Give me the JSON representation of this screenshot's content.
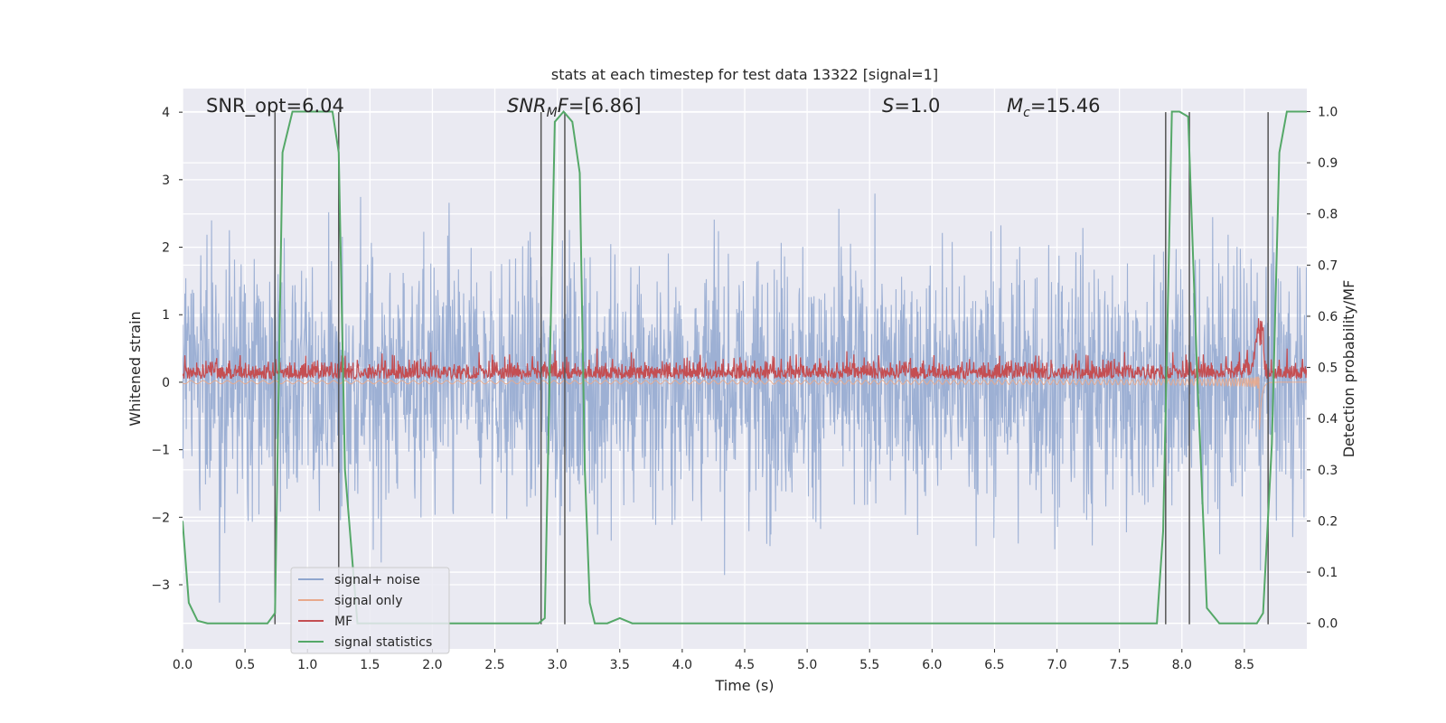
{
  "chart_data": {
    "type": "line",
    "title": "stats at each timestep for test data 13322 [signal=1]",
    "xlabel": "Time (s)",
    "ylabel_left": "Whitened strain",
    "ylabel_right": "Detection probability/MF",
    "xlim": [
      0.0,
      9.0
    ],
    "ylim_left": [
      -3.95,
      4.35
    ],
    "ylim_right": [
      -0.05,
      1.045
    ],
    "x_ticks": [
      "0.0",
      "0.5",
      "1.0",
      "1.5",
      "2.0",
      "2.5",
      "3.0",
      "3.5",
      "4.0",
      "4.5",
      "5.0",
      "5.5",
      "6.0",
      "6.5",
      "7.0",
      "7.5",
      "8.0",
      "8.5"
    ],
    "x_tick_values": [
      0.0,
      0.5,
      1.0,
      1.5,
      2.0,
      2.5,
      3.0,
      3.5,
      4.0,
      4.5,
      5.0,
      5.5,
      6.0,
      6.5,
      7.0,
      7.5,
      8.0,
      8.5
    ],
    "y_left_ticks": [
      "4",
      "3",
      "2",
      "1",
      "0",
      "−1",
      "−2",
      "−3"
    ],
    "y_left_tick_values": [
      4,
      3,
      2,
      1,
      0,
      -1,
      -2,
      -3
    ],
    "y_right_ticks": [
      "1.0",
      "0.9",
      "0.8",
      "0.7",
      "0.6",
      "0.5",
      "0.4",
      "0.3",
      "0.2",
      "0.1",
      "0.0"
    ],
    "y_right_tick_values": [
      1.0,
      0.9,
      0.8,
      0.7,
      0.6,
      0.5,
      0.4,
      0.3,
      0.2,
      0.1,
      0.0
    ],
    "annotations": {
      "snr_opt": "SNR_opt=6.04",
      "snr_mf_base": "SNR",
      "snr_mf_sub": "M",
      "snr_mf_rest": "F",
      "snr_mf_value": "=[6.86]",
      "s_symbol": "S",
      "s_value": "=1.0",
      "mc_base": "M",
      "mc_sub": "c",
      "mc_value": "=15.46"
    },
    "legend": {
      "placement": "bottom-left",
      "entries": [
        {
          "label": "signal+ noise",
          "color": "#8fa6cf"
        },
        {
          "label": "signal only",
          "color": "#e8a98c"
        },
        {
          "label": "MF",
          "color": "#c44e52"
        },
        {
          "label": "signal statistics",
          "color": "#55a868"
        }
      ]
    },
    "series": [
      {
        "name": "signal statistics",
        "axis": "right",
        "color": "#55a868",
        "x": [
          0.0,
          0.05,
          0.12,
          0.2,
          0.3,
          0.5,
          0.68,
          0.74,
          0.8,
          0.88,
          1.0,
          1.1,
          1.2,
          1.25,
          1.3,
          1.4,
          1.5,
          2.0,
          2.5,
          2.85,
          2.9,
          2.98,
          3.05,
          3.12,
          3.18,
          3.22,
          3.26,
          3.3,
          3.4,
          3.5,
          3.6,
          4.0,
          5.0,
          6.0,
          7.0,
          7.8,
          7.85,
          7.92,
          7.98,
          8.05,
          8.12,
          8.2,
          8.3,
          8.6,
          8.65,
          8.72,
          8.78,
          8.84,
          8.9,
          9.0
        ],
        "y": [
          0.2,
          0.04,
          0.005,
          0.0,
          0.0,
          0.0,
          0.0,
          0.02,
          0.92,
          1.0,
          1.0,
          1.0,
          1.0,
          0.92,
          0.3,
          0.0,
          0.0,
          0.0,
          0.0,
          0.0,
          0.01,
          0.98,
          1.0,
          0.98,
          0.88,
          0.3,
          0.04,
          0.0,
          0.0,
          0.01,
          0.0,
          0.0,
          0.0,
          0.0,
          0.0,
          0.0,
          0.18,
          1.0,
          1.0,
          0.99,
          0.5,
          0.03,
          0.0,
          0.0,
          0.02,
          0.35,
          0.92,
          1.0,
          1.0,
          1.0
        ]
      },
      {
        "name": "detection markers",
        "axis": "left",
        "color": "#555555",
        "x": [
          0.74,
          1.25,
          2.87,
          3.06,
          7.87,
          8.06,
          8.69
        ],
        "y": [
          4.0,
          4.0,
          4.0,
          4.0,
          4.0,
          4.0,
          4.0
        ]
      }
    ]
  }
}
